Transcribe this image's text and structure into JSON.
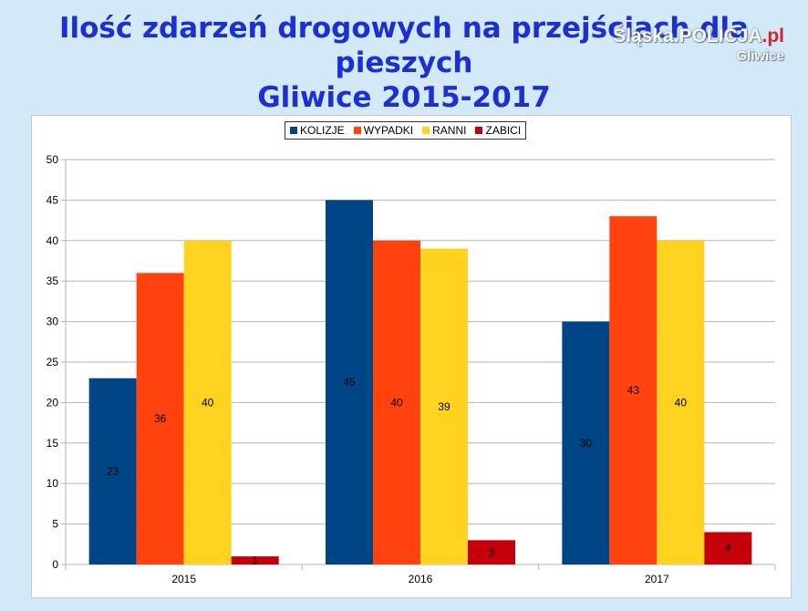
{
  "header": {
    "title_line1": "Ilość zdarzeń drogowych na przejściach dla pieszych",
    "title_line2": "Gliwice 2015-2017"
  },
  "watermark": {
    "main": "Śląska.POLICJA",
    "tld": ".pl",
    "sub": "Gliwice"
  },
  "chart_data": {
    "type": "bar",
    "title": "Ilość zdarzeń drogowych na przejściach dla pieszych Gliwice 2015-2017",
    "categories": [
      "2015",
      "2016",
      "2017"
    ],
    "series": [
      {
        "name": "KOLIZJE",
        "values": [
          23,
          45,
          30
        ],
        "color": "#004586"
      },
      {
        "name": "WYPADKI",
        "values": [
          36,
          40,
          43
        ],
        "color": "#ff420e"
      },
      {
        "name": "RANNI",
        "values": [
          40,
          39,
          40
        ],
        "color": "#ffd320"
      },
      {
        "name": "ZABICI",
        "values": [
          1,
          3,
          4
        ],
        "color": "#c5000b"
      }
    ],
    "ylim": [
      0,
      50
    ],
    "yticks": [
      0,
      5,
      10,
      15,
      20,
      25,
      30,
      35,
      40,
      45,
      50
    ],
    "grid": true,
    "legend_position": "top-center",
    "data_labels": true
  }
}
